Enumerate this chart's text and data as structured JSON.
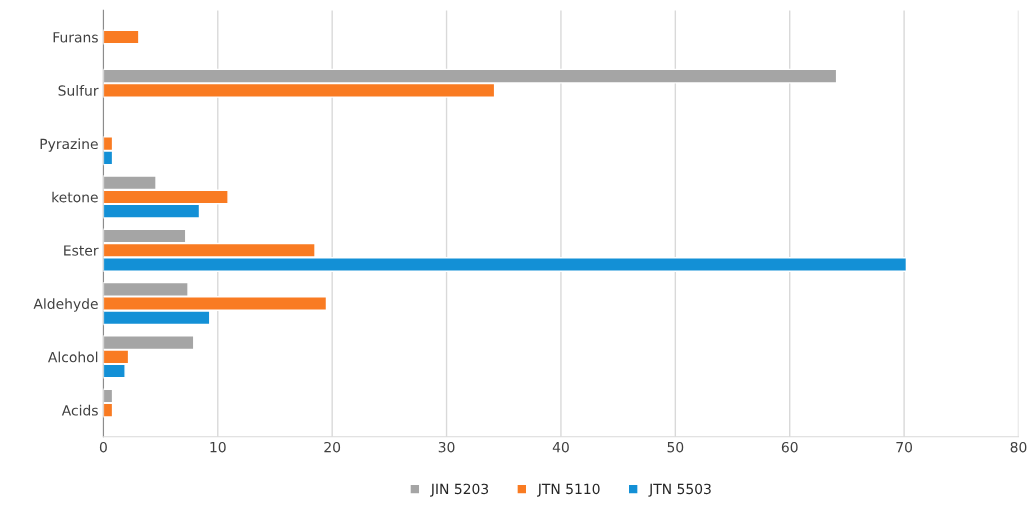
{
  "chart_data": {
    "type": "bar",
    "orientation": "horizontal",
    "categories": [
      "Furans",
      "Sulfur",
      "Pyrazine",
      "ketone",
      "Ester",
      "Aldehyde",
      "Alcohol",
      "Acids"
    ],
    "series": [
      {
        "name": "JIN 5203",
        "color": "#a5a5a5",
        "values": [
          null,
          64.1,
          null,
          4.6,
          7.2,
          7.4,
          7.9,
          0.8
        ]
      },
      {
        "name": "JTN 5110",
        "color": "#f97b22",
        "values": [
          3.1,
          34.2,
          0.8,
          10.9,
          18.5,
          19.5,
          2.2,
          0.8
        ]
      },
      {
        "name": "JTN 5503",
        "color": "#1390d6",
        "values": [
          null,
          null,
          0.8,
          8.4,
          70.2,
          9.3,
          1.9,
          null
        ]
      }
    ],
    "xlim": [
      0,
      80
    ],
    "xticks": [
      0,
      10,
      20,
      30,
      40,
      50,
      60,
      70,
      80
    ],
    "grid": "x",
    "legend": "bottom"
  }
}
